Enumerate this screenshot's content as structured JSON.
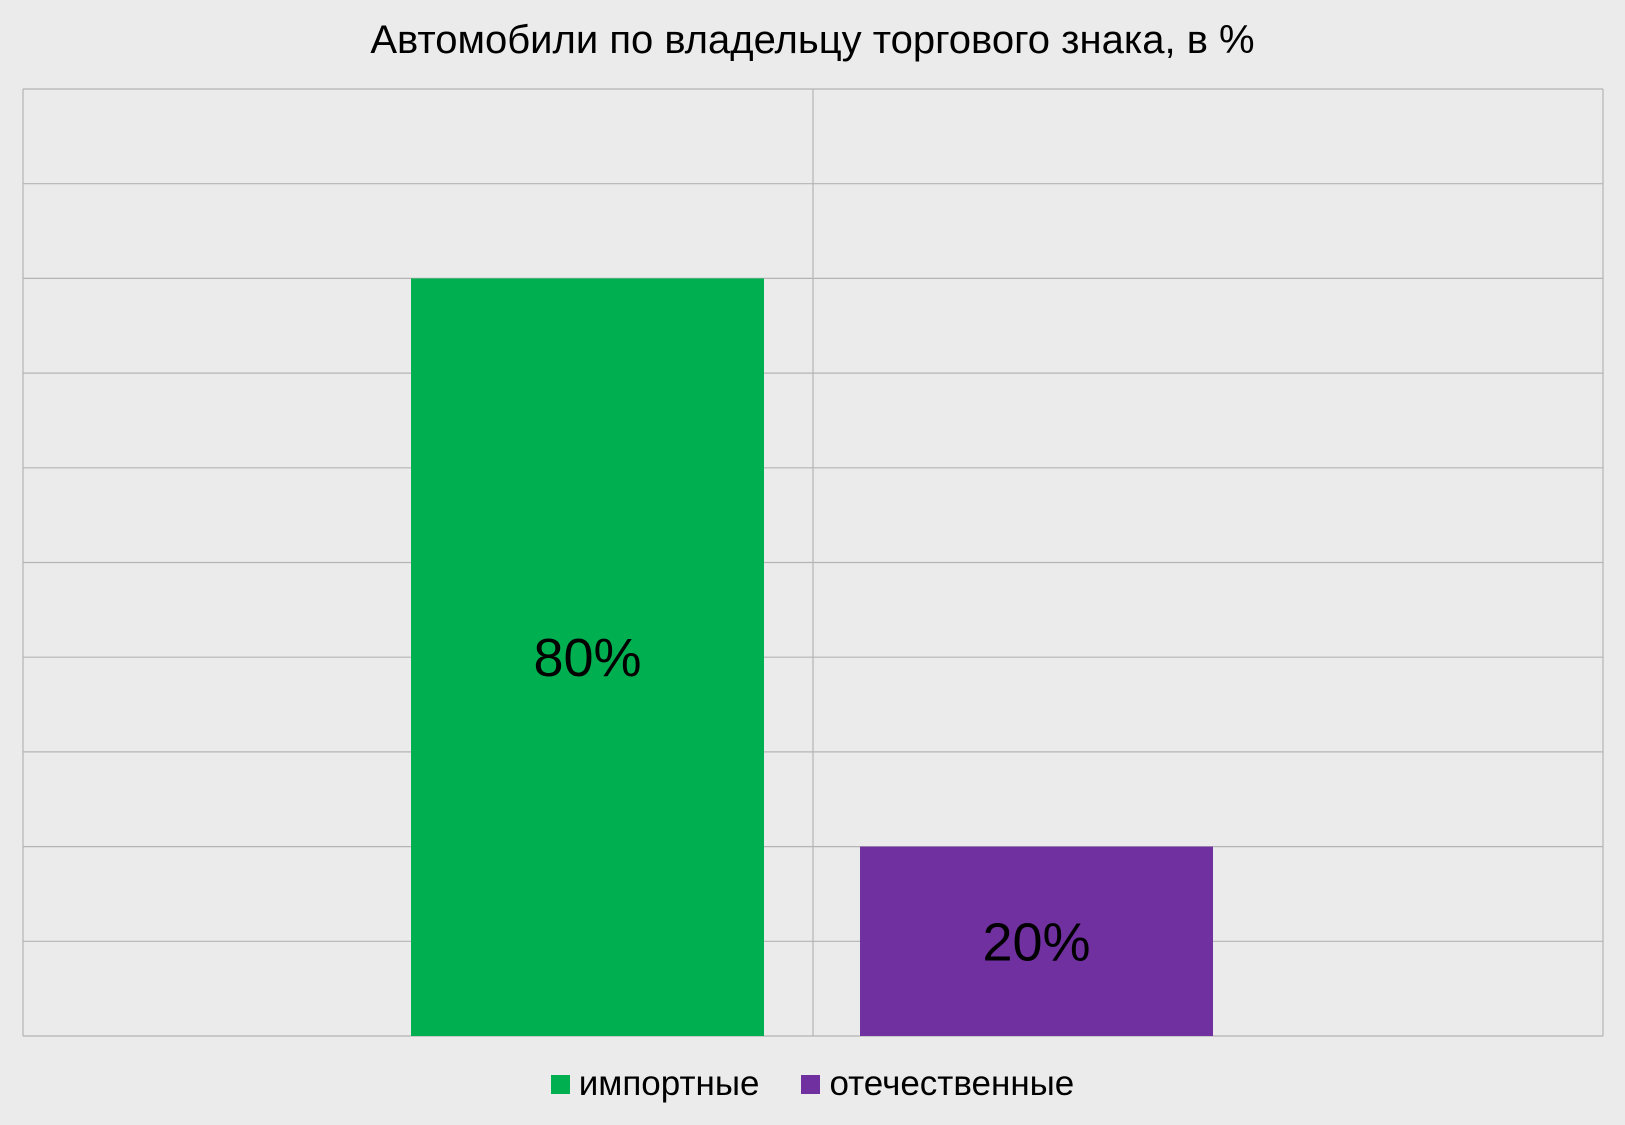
{
  "chart_data": {
    "type": "bar",
    "title": "Автомобили по владельцу торгового знака, в %",
    "categories": [
      "импортные",
      "отечественные"
    ],
    "values": [
      80,
      20
    ],
    "data_labels": [
      "80%",
      "20%"
    ],
    "colors": [
      "#00b050",
      "#7030a0"
    ],
    "ylim": [
      0,
      100
    ],
    "y_gridlines": 10,
    "grid": true,
    "legend": {
      "position": "bottom",
      "entries": [
        {
          "label": "импортные",
          "color": "#00b050"
        },
        {
          "label": "отечественные",
          "color": "#7030a0"
        }
      ]
    }
  }
}
